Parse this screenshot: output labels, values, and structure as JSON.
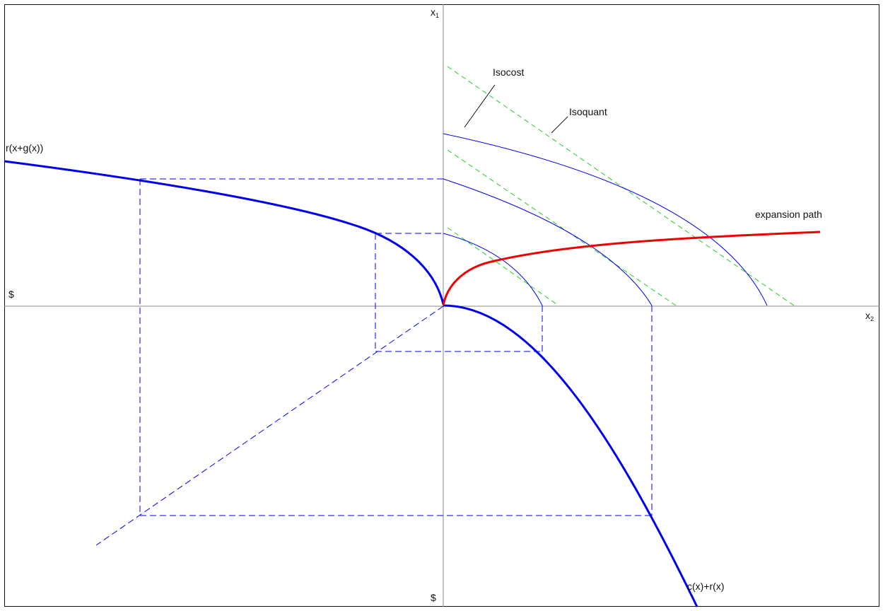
{
  "axes": {
    "x1_label": "x",
    "x1_subscript": "1",
    "x2_label": "x",
    "x2_subscript": "2",
    "dollar_left": "$",
    "dollar_bottom": "$"
  },
  "labels": {
    "isocost": "Isocost",
    "isoquant": "Isoquant",
    "expansion_path": "expansion path",
    "revenue_curve": "r(x+g(x))",
    "cost_curve": "c(x)+r(x)"
  },
  "colors": {
    "curve_blue": "#0000ee",
    "expansion_red": "#ee0000",
    "isocost_green": "#22cc22",
    "axis_gray": "#888888",
    "text": "#111111"
  }
}
